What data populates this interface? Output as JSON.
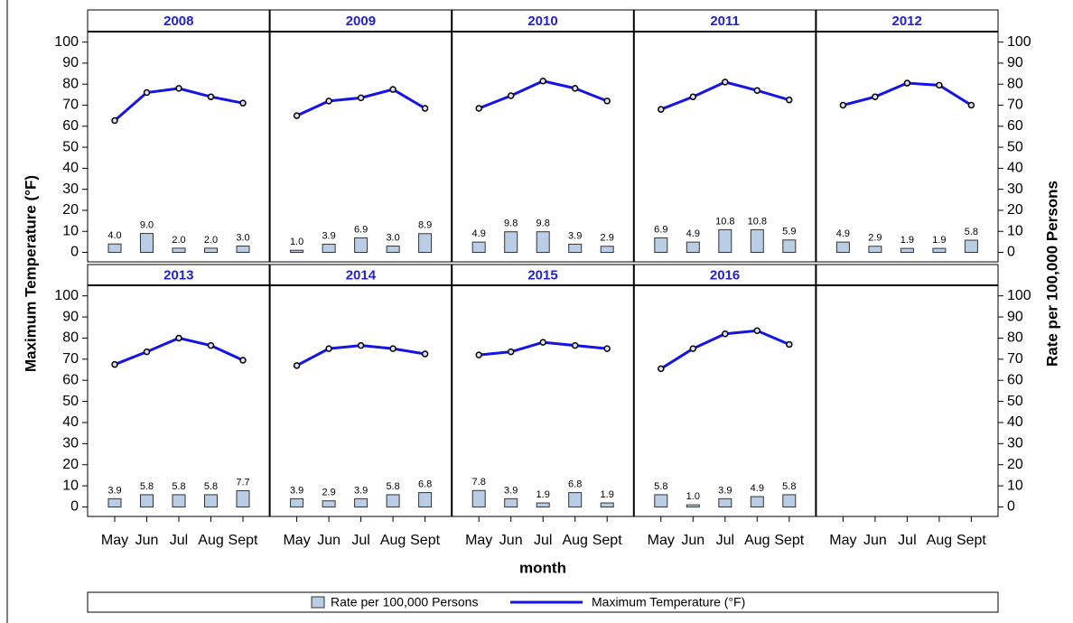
{
  "chart_data": {
    "type": "bar-line-panel",
    "ylabel": "Maximum Temperature (°F)",
    "y2label": "Rate per 100,000 Persons",
    "xlabel": "month",
    "categories": [
      "May",
      "Jun",
      "Jul",
      "Aug",
      "Sept"
    ],
    "ylim": [
      -4.5,
      105
    ],
    "yticks": [
      0,
      10,
      20,
      30,
      40,
      50,
      60,
      70,
      80,
      90,
      100
    ],
    "y2lim": [
      -4.5,
      105
    ],
    "y2ticks": [
      0,
      10,
      20,
      30,
      40,
      50,
      60,
      70,
      80,
      90,
      100
    ],
    "series": [
      {
        "name": "Rate per 100,000 Persons",
        "color": "#b9cde5",
        "axis": "y2",
        "mark": "bar"
      },
      {
        "name": "Maximum Temperature (°F)",
        "color": "#1414e6",
        "mark": "line"
      }
    ],
    "panels": [
      {
        "title": "2008",
        "series": [
          {
            "values": [
              4.0,
              9.0,
              2.0,
              2.0,
              3.0
            ],
            "value_labels": [
              "4.0",
              "9.0",
              "2.0",
              "2.0",
              "3.0"
            ]
          },
          {
            "values": [
              62.7,
              76,
              78,
              74,
              71
            ]
          }
        ]
      },
      {
        "title": "2009",
        "series": [
          {
            "values": [
              1.0,
              3.9,
              6.9,
              3.0,
              8.9
            ],
            "value_labels": [
              "1.0",
              "3.9",
              "6.9",
              "3.0",
              "8.9"
            ]
          },
          {
            "values": [
              65,
              72,
              73.5,
              77.5,
              68.5
            ]
          }
        ]
      },
      {
        "title": "2010",
        "series": [
          {
            "values": [
              4.9,
              9.8,
              9.8,
              3.9,
              2.9
            ],
            "value_labels": [
              "4.9",
              "9.8",
              "9.8",
              "3.9",
              "2.9"
            ]
          },
          {
            "values": [
              68.5,
              74.5,
              81.5,
              78,
              72
            ]
          }
        ]
      },
      {
        "title": "2011",
        "series": [
          {
            "values": [
              6.9,
              4.9,
              10.8,
              10.8,
              5.9
            ],
            "value_labels": [
              "6.9",
              "4.9",
              "10.8",
              "10.8",
              "5.9"
            ]
          },
          {
            "values": [
              68,
              74,
              81,
              77,
              72.5
            ]
          }
        ]
      },
      {
        "title": "2012",
        "series": [
          {
            "values": [
              4.9,
              2.9,
              1.9,
              1.9,
              5.8
            ],
            "value_labels": [
              "4.9",
              "2.9",
              "1.9",
              "1.9",
              "5.8"
            ]
          },
          {
            "values": [
              70,
              74,
              80.5,
              79.5,
              70
            ]
          }
        ]
      },
      {
        "title": "2013",
        "series": [
          {
            "values": [
              3.9,
              5.8,
              5.8,
              5.8,
              7.7
            ],
            "value_labels": [
              "3.9",
              "5.8",
              "5.8",
              "5.8",
              "7.7"
            ]
          },
          {
            "values": [
              67.5,
              73.5,
              80,
              76.5,
              69.5
            ]
          }
        ]
      },
      {
        "title": "2014",
        "series": [
          {
            "values": [
              3.9,
              2.9,
              3.9,
              5.8,
              6.8
            ],
            "value_labels": [
              "3.9",
              "2.9",
              "3.9",
              "5.8",
              "6.8"
            ]
          },
          {
            "values": [
              67,
              75,
              76.5,
              75,
              72.5
            ]
          }
        ]
      },
      {
        "title": "2015",
        "series": [
          {
            "values": [
              7.8,
              3.9,
              1.9,
              6.8,
              1.9
            ],
            "value_labels": [
              "7.8",
              "3.9",
              "1.9",
              "6.8",
              "1.9"
            ]
          },
          {
            "values": [
              72,
              73.5,
              78,
              76.5,
              75
            ]
          }
        ]
      },
      {
        "title": "2016",
        "series": [
          {
            "values": [
              5.8,
              1.0,
              3.9,
              4.9,
              5.8
            ],
            "value_labels": [
              "5.8",
              "1.0",
              "3.9",
              "4.9",
              "5.8"
            ]
          },
          {
            "values": [
              65.5,
              75,
              82,
              83.5,
              77
            ]
          }
        ]
      }
    ]
  }
}
